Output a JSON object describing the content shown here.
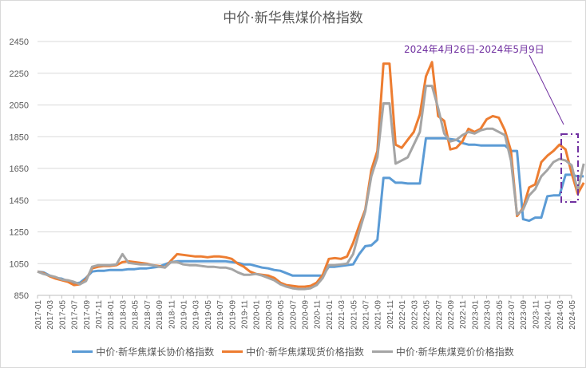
{
  "chart_data": {
    "type": "line",
    "title": "中价·新华焦煤价格指数",
    "xlabel": "",
    "ylabel": "",
    "ylim": [
      850,
      2450
    ],
    "yticks": [
      850,
      1050,
      1250,
      1450,
      1650,
      1850,
      2050,
      2250,
      2450
    ],
    "grid": "horizontal",
    "legend_position": "bottom",
    "x_tick_labels": [
      "2017-01",
      "2017-03",
      "2017-05",
      "2017-07",
      "2017-09",
      "2017-11",
      "2018-01",
      "2018-03",
      "2018-05",
      "2018-07",
      "2018-09",
      "2018-11",
      "2019-01",
      "2019-03",
      "2019-05",
      "2019-07",
      "2019-09",
      "2019-11",
      "2020-01",
      "2020-03",
      "2020-05",
      "2020-07",
      "2020-09",
      "2020-11",
      "2021-01",
      "2021-03",
      "2021-05",
      "2021-07",
      "2021-09",
      "2021-11",
      "2022-01",
      "2022-03",
      "2022-05",
      "2022-07",
      "2022-09",
      "2022-11",
      "2023-01",
      "2023-03",
      "2023-05",
      "2023-07",
      "2023-09",
      "2023-11",
      "2024-01",
      "2024-03",
      "2024-05"
    ],
    "x": [
      "2017-01",
      "2017-02",
      "2017-03",
      "2017-04",
      "2017-05",
      "2017-06",
      "2017-07",
      "2017-08",
      "2017-09",
      "2017-10",
      "2017-11",
      "2017-12",
      "2018-01",
      "2018-02",
      "2018-03",
      "2018-04",
      "2018-05",
      "2018-06",
      "2018-07",
      "2018-08",
      "2018-09",
      "2018-10",
      "2018-11",
      "2018-12",
      "2019-01",
      "2019-02",
      "2019-03",
      "2019-04",
      "2019-05",
      "2019-06",
      "2019-07",
      "2019-08",
      "2019-09",
      "2019-10",
      "2019-11",
      "2019-12",
      "2020-01",
      "2020-02",
      "2020-03",
      "2020-04",
      "2020-05",
      "2020-06",
      "2020-07",
      "2020-08",
      "2020-09",
      "2020-10",
      "2020-11",
      "2020-12",
      "2021-01",
      "2021-02",
      "2021-03",
      "2021-04",
      "2021-05",
      "2021-06",
      "2021-07",
      "2021-08",
      "2021-09",
      "2021-10",
      "2021-11",
      "2021-12",
      "2022-01",
      "2022-02",
      "2022-03",
      "2022-04",
      "2022-05",
      "2022-06",
      "2022-07",
      "2022-08",
      "2022-09",
      "2022-10",
      "2022-11",
      "2022-12",
      "2023-01",
      "2023-02",
      "2023-03",
      "2023-04",
      "2023-05",
      "2023-06",
      "2023-07",
      "2023-08",
      "2023-09",
      "2023-10",
      "2023-11",
      "2023-12",
      "2024-01",
      "2024-02",
      "2024-03",
      "2024-04",
      "2024-05"
    ],
    "series": [
      {
        "name": "中价·新华焦煤长协价格指数",
        "color": "#5b9bd5",
        "values": [
          1000,
          995,
          975,
          960,
          955,
          940,
          925,
          930,
          960,
          1000,
          1005,
          1005,
          1010,
          1010,
          1010,
          1015,
          1015,
          1020,
          1020,
          1025,
          1030,
          1045,
          1060,
          1065,
          1065,
          1065,
          1065,
          1065,
          1065,
          1065,
          1065,
          1065,
          1060,
          1055,
          1045,
          1045,
          1035,
          1025,
          1020,
          1010,
          1005,
          990,
          975,
          975,
          975,
          975,
          975,
          975,
          1030,
          1030,
          1035,
          1040,
          1045,
          1110,
          1160,
          1165,
          1200,
          1590,
          1590,
          1560,
          1560,
          1555,
          1555,
          1555,
          1840,
          1840,
          1840,
          1840,
          1835,
          1830,
          1810,
          1800,
          1800,
          1795,
          1795,
          1795,
          1795,
          1795,
          1760,
          1760,
          1330,
          1320,
          1340,
          1340,
          1475,
          1480,
          1480,
          1610,
          1610,
          1600,
          1600
        ]
      },
      {
        "name": "中价·新华焦煤现货价格指数",
        "color": "#ed7d31",
        "values": [
          1000,
          990,
          970,
          955,
          945,
          935,
          915,
          920,
          950,
          1020,
          1030,
          1035,
          1035,
          1040,
          1060,
          1065,
          1060,
          1055,
          1050,
          1040,
          1035,
          1025,
          1070,
          1110,
          1105,
          1100,
          1095,
          1095,
          1090,
          1095,
          1095,
          1090,
          1080,
          1050,
          1030,
          1000,
          985,
          980,
          975,
          960,
          930,
          915,
          910,
          905,
          905,
          910,
          930,
          980,
          1080,
          1085,
          1080,
          1095,
          1180,
          1290,
          1390,
          1640,
          1760,
          2310,
          2310,
          1800,
          1780,
          1830,
          1880,
          1990,
          2230,
          2320,
          1980,
          1950,
          1770,
          1780,
          1820,
          1900,
          1880,
          1900,
          1960,
          1980,
          1970,
          1890,
          1760,
          1350,
          1400,
          1530,
          1550,
          1690,
          1730,
          1760,
          1800,
          1770,
          1620,
          1490,
          1560
        ]
      },
      {
        "name": "中价·新华焦煤竞价价格指数",
        "color": "#a5a5a5",
        "values": [
          1000,
          985,
          975,
          965,
          950,
          945,
          935,
          920,
          940,
          1030,
          1040,
          1040,
          1040,
          1045,
          1110,
          1055,
          1050,
          1045,
          1045,
          1040,
          1030,
          1025,
          1060,
          1060,
          1045,
          1040,
          1040,
          1035,
          1030,
          1030,
          1025,
          1025,
          1015,
          995,
          980,
          980,
          985,
          975,
          960,
          945,
          920,
          905,
          895,
          890,
          890,
          895,
          915,
          960,
          1040,
          1040,
          1045,
          1050,
          1110,
          1250,
          1380,
          1600,
          1720,
          2060,
          2060,
          1680,
          1700,
          1720,
          1800,
          1880,
          2170,
          2170,
          2030,
          1870,
          1820,
          1830,
          1860,
          1880,
          1870,
          1890,
          1900,
          1900,
          1880,
          1860,
          1700,
          1360,
          1390,
          1480,
          1520,
          1600,
          1640,
          1690,
          1710,
          1700,
          1670,
          1510,
          1680
        ]
      }
    ],
    "annotations": [
      {
        "text": "2024年4月26日-2024年5月9日",
        "target_box": {
          "x_from": "2024-04",
          "x_to": "2024-05",
          "y_from": 1450,
          "y_to": 1850
        },
        "style": "dash-dot box with pointer line",
        "color": "#7030a0"
      }
    ]
  },
  "legend": {
    "items": [
      {
        "label": "中价·新华焦煤长协价格指数",
        "color": "#5b9bd5"
      },
      {
        "label": "中价·新华焦煤现货价格指数",
        "color": "#ed7d31"
      },
      {
        "label": "中价·新华焦煤竞价价格指数",
        "color": "#a5a5a5"
      }
    ]
  }
}
